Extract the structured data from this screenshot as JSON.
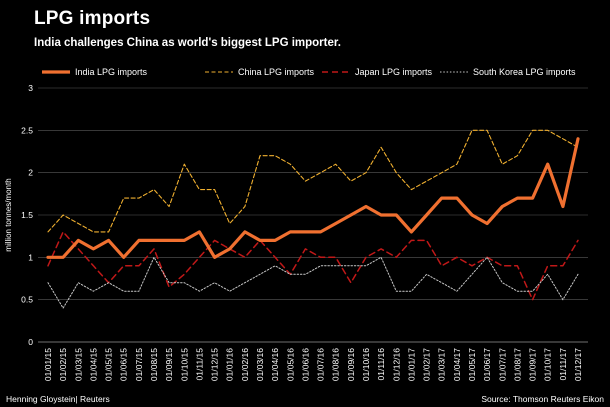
{
  "title": "LPG imports",
  "subtitle": "India challenges China as world's biggest LPG importer.",
  "footer": {
    "left": "Henning Gloystein| Reuters",
    "right": "Source: Thomson Reuters Eikon"
  },
  "colors": {
    "india": "#f07030",
    "china": "#f0b030",
    "japan": "#c01818",
    "korea": "#c8c8c8",
    "grid": "#5a5a5a"
  },
  "chart_data": {
    "type": "line",
    "ylabel": "million tonnes/month",
    "ylim": [
      0,
      3
    ],
    "yticks": [
      0,
      0.5,
      1,
      1.5,
      2,
      2.5,
      3
    ],
    "ytick_labels": [
      "0",
      "0.5",
      "1",
      "1.5",
      "2",
      "2.5",
      "3"
    ],
    "grid": "horizontal",
    "legend": "top",
    "x": [
      "01/01/15",
      "01/02/15",
      "01/03/15",
      "01/04/15",
      "01/05/15",
      "01/06/15",
      "01/07/15",
      "01/08/15",
      "01/09/15",
      "01/10/15",
      "01/11/15",
      "01/12/15",
      "01/01/16",
      "01/02/16",
      "01/03/16",
      "01/04/16",
      "01/05/16",
      "01/06/16",
      "01/07/16",
      "01/08/16",
      "01/09/16",
      "01/10/16",
      "01/11/16",
      "01/12/16",
      "01/01/17",
      "01/02/17",
      "01/03/17",
      "01/04/17",
      "01/05/17",
      "01/06/17",
      "01/07/17",
      "01/08/17",
      "01/09/17",
      "01/10/17",
      "01/11/17",
      "01/12/17"
    ],
    "series": [
      {
        "name": "India LPG imports",
        "style": "solid-thick",
        "values": [
          1.0,
          1.0,
          1.2,
          1.1,
          1.2,
          1.0,
          1.2,
          1.2,
          1.2,
          1.2,
          1.3,
          1.0,
          1.1,
          1.3,
          1.2,
          1.2,
          1.3,
          1.3,
          1.3,
          1.4,
          1.5,
          1.6,
          1.5,
          1.5,
          1.3,
          1.5,
          1.7,
          1.7,
          1.5,
          1.4,
          1.6,
          1.7,
          1.7,
          2.1,
          1.6,
          2.4
        ]
      },
      {
        "name": "China LPG imports",
        "style": "dashed",
        "values": [
          1.3,
          1.5,
          1.4,
          1.3,
          1.3,
          1.7,
          1.7,
          1.8,
          1.6,
          2.1,
          1.8,
          1.8,
          1.4,
          1.6,
          2.2,
          2.2,
          2.1,
          1.9,
          2.0,
          2.1,
          1.9,
          2.0,
          2.3,
          2.0,
          1.8,
          1.9,
          2.0,
          2.1,
          2.5,
          2.5,
          2.1,
          2.2,
          2.5,
          2.5,
          2.4,
          2.3
        ]
      },
      {
        "name": "Japan LPG imports",
        "style": "dashed-long",
        "values": [
          0.9,
          1.3,
          1.1,
          0.9,
          0.7,
          0.9,
          0.9,
          1.1,
          0.65,
          0.8,
          1.0,
          1.2,
          1.1,
          1.0,
          1.2,
          1.0,
          0.8,
          1.1,
          1.0,
          1.0,
          0.7,
          1.0,
          1.1,
          1.0,
          1.2,
          1.2,
          0.9,
          1.0,
          0.9,
          1.0,
          0.9,
          0.9,
          0.5,
          0.9,
          0.9,
          1.2
        ]
      },
      {
        "name": "South Korea LPG imports",
        "style": "dotted",
        "values": [
          0.7,
          0.4,
          0.7,
          0.6,
          0.7,
          0.6,
          0.6,
          1.0,
          0.7,
          0.7,
          0.6,
          0.7,
          0.6,
          0.7,
          0.8,
          0.9,
          0.8,
          0.8,
          0.9,
          0.9,
          0.9,
          0.9,
          1.0,
          0.6,
          0.6,
          0.8,
          0.7,
          0.6,
          0.8,
          1.0,
          0.7,
          0.6,
          0.6,
          0.8,
          0.5,
          0.8
        ]
      }
    ]
  }
}
